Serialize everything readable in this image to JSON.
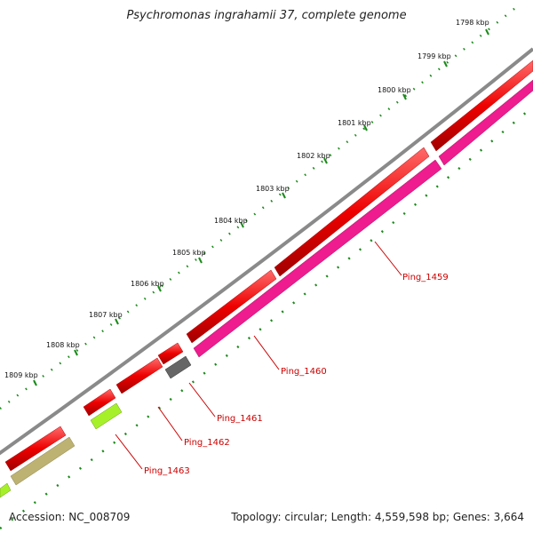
{
  "title": "Psychromonas ingrahamii 37, complete genome",
  "accession": "Accession: NC_008709",
  "summary": "Topology: circular; Length: 4,559,598 bp; Genes: 3,664",
  "kbp_labels": [
    "1798 kbp",
    "1799 kbp",
    "1800 kbp",
    "1801 kbp",
    "1802 kbp",
    "1803 kbp",
    "1804 kbp",
    "1805 kbp",
    "1806 kbp",
    "1807 kbp",
    "1808 kbp",
    "1809 kbp"
  ],
  "gene_labels": [
    "Ping_1459",
    "Ping_1460",
    "Ping_1461",
    "Ping_1462",
    "Ping_1463"
  ],
  "colors": {
    "backbone": "#8a8a8a",
    "forward_gene": "#ee0000",
    "reverse_gene": "#ee1c8e",
    "grey_gene": "#666666",
    "lime_gene": "#a6f02a",
    "olive_gene": "#bdb271",
    "tick": "#1a8a1a",
    "label": "#cc0000"
  }
}
